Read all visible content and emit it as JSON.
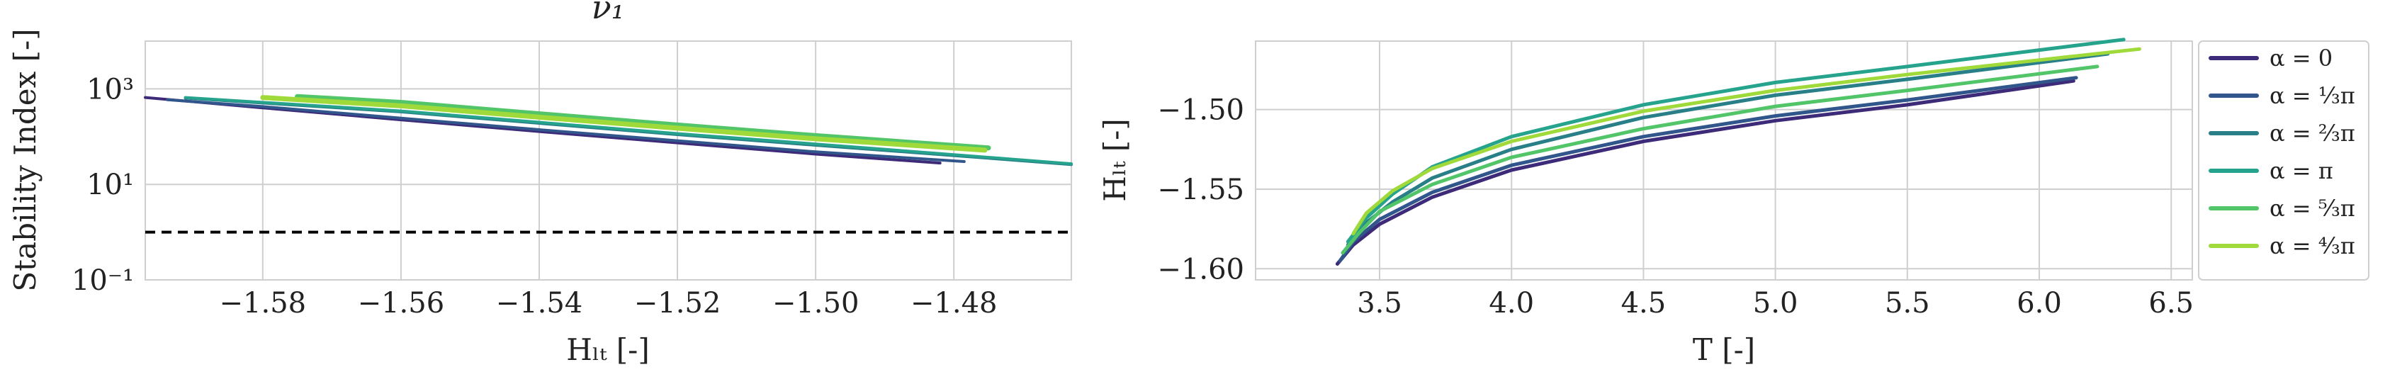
{
  "chart_data": [
    {
      "type": "line",
      "title": "ν₁",
      "xlabel": "Hₗₜ [-]",
      "ylabel": "Stability Index [-]",
      "yscale": "log",
      "xlim": [
        -1.597,
        -1.463
      ],
      "ylim": [
        0.1,
        10000
      ],
      "xticks": [
        "−1.58",
        "−1.56",
        "−1.54",
        "−1.52",
        "−1.50",
        "−1.48"
      ],
      "xtick_values": [
        -1.58,
        -1.56,
        -1.54,
        -1.52,
        -1.5,
        -1.48
      ],
      "yticks": [
        "10⁻¹",
        "10¹",
        "10³"
      ],
      "ytick_values": [
        0.1,
        10,
        1000
      ],
      "grid": true,
      "reference_line": {
        "y": 1,
        "style": "dashed",
        "color": "#000000"
      },
      "series": [
        {
          "name": "α = 0",
          "color": "#3d2a78",
          "x": [
            -1.597,
            -1.58,
            -1.56,
            -1.54,
            -1.52,
            -1.5,
            -1.482
          ],
          "y": [
            660,
            400,
            225,
            128,
            74,
            43,
            28
          ]
        },
        {
          "name": "α = ⅓π",
          "color": "#31568c",
          "x": [
            -1.5938,
            -1.58,
            -1.56,
            -1.54,
            -1.52,
            -1.5,
            -1.4785
          ],
          "y": [
            590,
            425,
            243,
            140,
            82,
            48,
            30
          ]
        },
        {
          "name": "α = ⅔π",
          "color": "#287f88",
          "x": [
            -1.5912,
            -1.56,
            -1.54,
            -1.52,
            -1.5,
            -1.48,
            -1.463
          ],
          "y": [
            640,
            330,
            190,
            110,
            66,
            40,
            26
          ]
        },
        {
          "name": "α = π",
          "color": "#25a38d",
          "x": [
            -1.5912,
            -1.56,
            -1.54,
            -1.52,
            -1.5,
            -1.48,
            -1.463
          ],
          "y": [
            660,
            345,
            200,
            116,
            70,
            42,
            27
          ]
        },
        {
          "name": "α = ⁵⁄₃π",
          "color": "#52c569",
          "x": [
            -1.575,
            -1.56,
            -1.54,
            -1.52,
            -1.5,
            -1.475
          ],
          "y": [
            690,
            520,
            300,
            175,
            105,
            58
          ]
        },
        {
          "name": "α = ⁴⁄₃π",
          "color": "#9fda3a",
          "x": [
            -1.58,
            -1.56,
            -1.54,
            -1.52,
            -1.5,
            -1.4755
          ],
          "y": [
            660,
            440,
            255,
            150,
            90,
            52
          ]
        }
      ]
    },
    {
      "type": "line",
      "xlabel": "T [-]",
      "ylabel": "Hₗₜ [-]",
      "xlim": [
        3.03,
        6.58
      ],
      "ylim": [
        -1.607,
        -1.457
      ],
      "xticks": [
        "3.5",
        "4.0",
        "4.5",
        "5.0",
        "5.5",
        "6.0",
        "6.5"
      ],
      "xtick_values": [
        3.5,
        4.0,
        4.5,
        5.0,
        5.5,
        6.0,
        6.5
      ],
      "yticks": [
        "−1.60",
        "−1.55",
        "−1.50"
      ],
      "ytick_values": [
        -1.6,
        -1.55,
        -1.5
      ],
      "grid": true,
      "legend": "outside-right",
      "series": [
        {
          "name": "α = 0",
          "color": "#3d2a78",
          "x": [
            3.34,
            3.4,
            3.5,
            3.7,
            4.0,
            4.5,
            5.0,
            5.5,
            6.13
          ],
          "y": [
            -1.597,
            -1.585,
            -1.572,
            -1.555,
            -1.538,
            -1.52,
            -1.507,
            -1.497,
            -1.482
          ]
        },
        {
          "name": "α = ⅓π",
          "color": "#31568c",
          "x": [
            3.35,
            3.4,
            3.5,
            3.7,
            4.0,
            4.5,
            5.0,
            5.5,
            6.14
          ],
          "y": [
            -1.595,
            -1.583,
            -1.569,
            -1.552,
            -1.535,
            -1.517,
            -1.504,
            -1.494,
            -1.48
          ]
        },
        {
          "name": "α = ⅔π",
          "color": "#287f88",
          "x": [
            3.38,
            3.45,
            3.55,
            3.7,
            4.0,
            4.5,
            5.0,
            5.5,
            6.26
          ],
          "y": [
            -1.585,
            -1.571,
            -1.558,
            -1.543,
            -1.525,
            -1.505,
            -1.491,
            -1.481,
            -1.465
          ]
        },
        {
          "name": "α = π",
          "color": "#25a38d",
          "x": [
            3.38,
            3.45,
            3.55,
            3.7,
            4.0,
            4.5,
            5.0,
            5.5,
            6.32
          ],
          "y": [
            -1.583,
            -1.568,
            -1.553,
            -1.536,
            -1.517,
            -1.497,
            -1.483,
            -1.473,
            -1.456
          ]
        },
        {
          "name": "α = ⁵⁄₃π",
          "color": "#52c569",
          "x": [
            3.36,
            3.42,
            3.5,
            3.7,
            4.0,
            4.5,
            5.0,
            5.5,
            6.22
          ],
          "y": [
            -1.59,
            -1.578,
            -1.564,
            -1.547,
            -1.53,
            -1.512,
            -1.498,
            -1.488,
            -1.473
          ]
        },
        {
          "name": "α = ⁴⁄₃π",
          "color": "#9fda3a",
          "x": [
            3.4,
            3.45,
            3.55,
            3.7,
            4.0,
            4.5,
            5.0,
            5.5,
            6.38
          ],
          "y": [
            -1.578,
            -1.565,
            -1.551,
            -1.537,
            -1.52,
            -1.501,
            -1.488,
            -1.478,
            -1.462
          ]
        }
      ]
    }
  ]
}
